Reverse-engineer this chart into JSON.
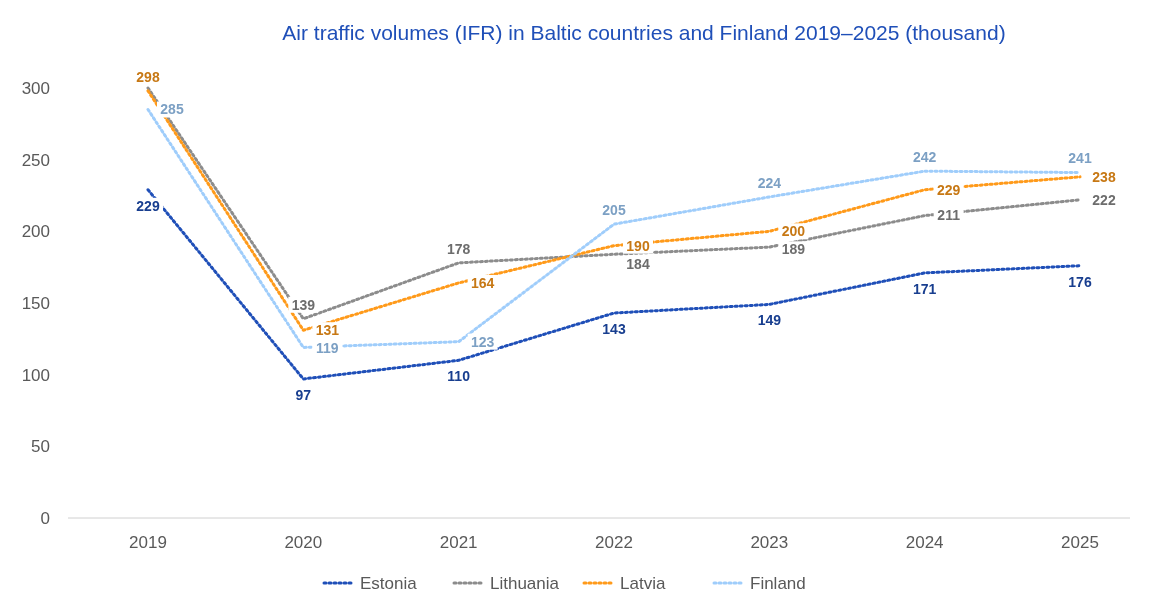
{
  "chart_data": {
    "type": "line",
    "title": "Air traffic volumes (IFR) in Baltic countries and Finland 2019–2025 (thousand)",
    "categories": [
      "2019",
      "2020",
      "2021",
      "2022",
      "2023",
      "2024",
      "2025"
    ],
    "ylim": [
      0,
      300
    ],
    "yticks": [
      0,
      50,
      100,
      150,
      200,
      250,
      300
    ],
    "grid": false,
    "legend": "bottom",
    "line_style": "dotted",
    "series": [
      {
        "name": "Estonia",
        "color": "#1f4fb8",
        "values": [
          229,
          97,
          110,
          143,
          149,
          171,
          176
        ],
        "value_labels": [
          "229",
          "97",
          "110",
          "143",
          "149",
          "171",
          "176"
        ]
      },
      {
        "name": "Lithuania",
        "color": "#8c8c8c",
        "values": [
          300,
          139,
          178,
          184,
          189,
          211,
          222
        ],
        "value_labels": [
          null,
          "139",
          "178",
          "184",
          "189",
          "211",
          "222"
        ]
      },
      {
        "name": "Latvia",
        "color": "#ff9a1a",
        "values": [
          298,
          131,
          164,
          190,
          200,
          229,
          238
        ],
        "value_labels": [
          "298",
          "131",
          "164",
          "190",
          "200",
          "229",
          "238"
        ]
      },
      {
        "name": "Finland",
        "color": "#9fcdfb",
        "values": [
          285,
          119,
          123,
          205,
          224,
          242,
          241
        ],
        "value_labels": [
          "285",
          "119",
          "123",
          "205",
          "224",
          "242",
          "241"
        ]
      }
    ]
  }
}
